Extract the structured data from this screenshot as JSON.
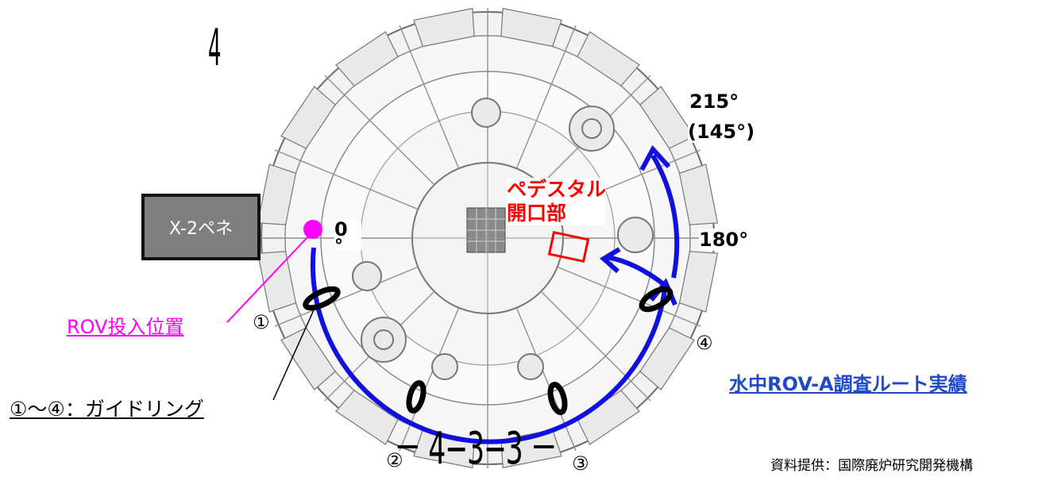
{
  "figure_number": "4",
  "penetration_label": "X-2ペネ",
  "angles": {
    "a215": "215°",
    "a145": "(145°)",
    "a180": "180°",
    "zero": "0",
    "zero_deg": "°"
  },
  "pedestal_label_line1": "ペデスタル",
  "pedestal_label_line2": "開口部",
  "rov_insertion_label": "ROV投入位置",
  "guide_ring_label": "①～④：ガイドリング",
  "ring_numbers": [
    "①",
    "②",
    "③",
    "④"
  ],
  "bottom_code": "－ 4−3−3 －",
  "route_label": "水中ROV-A調査ルート実績",
  "credit": "資料提供：国際廃炉研究開発機構",
  "colors": {
    "route": "#1010e0",
    "pedestal": "#ff0000",
    "rov": "#ff00ff",
    "route_label": "#1f49c6"
  }
}
